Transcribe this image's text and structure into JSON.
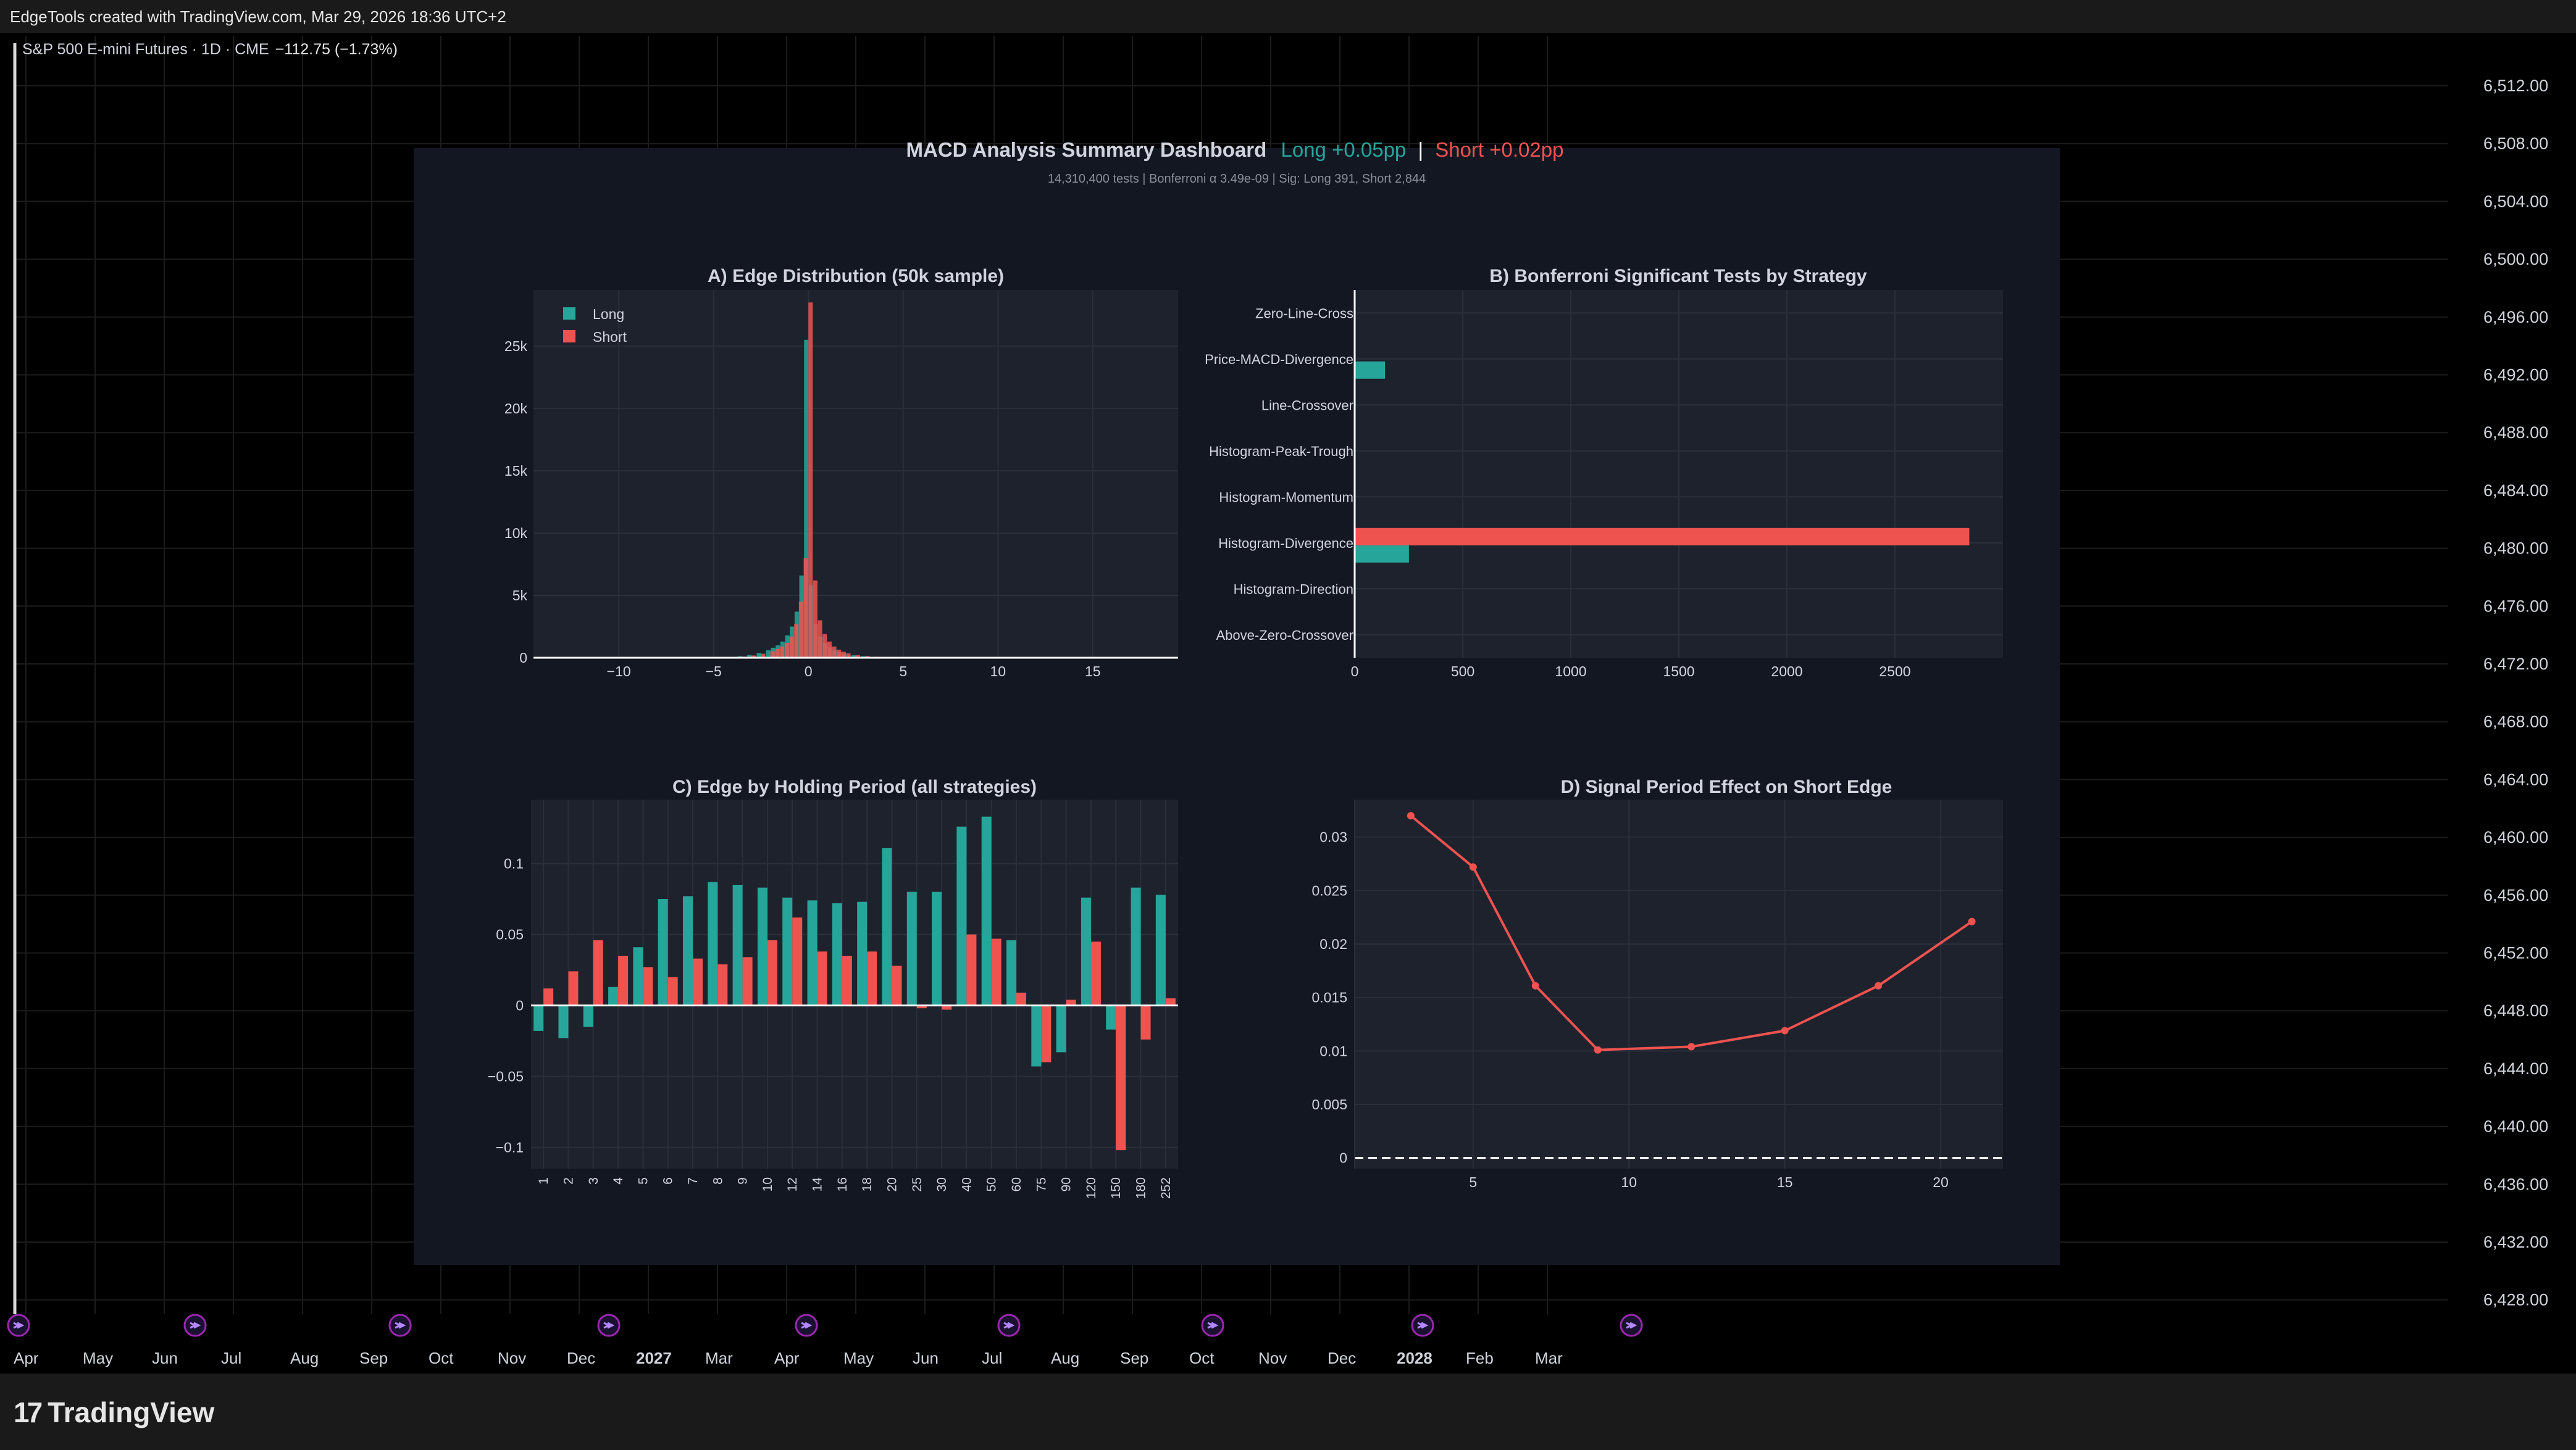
{
  "topbar": {
    "text": "EdgeTools created with TradingView.com, Mar 29, 2026 18:36 UTC+2"
  },
  "legend": {
    "symbol": "S&P 500 E-mini Futures · 1D · CME",
    "change": "−112.75 (−1.73%)"
  },
  "price_axis": [
    "6,512.00",
    "6,508.00",
    "6,504.00",
    "6,500.00",
    "6,496.00",
    "6,492.00",
    "6,488.00",
    "6,484.00",
    "6,480.00",
    "6,476.00",
    "6,472.00",
    "6,468.00",
    "6,464.00",
    "6,460.00",
    "6,456.00",
    "6,452.00",
    "6,448.00",
    "6,444.00",
    "6,440.00",
    "6,436.00",
    "6,432.00",
    "6,428.00"
  ],
  "time_axis": [
    {
      "label": "Apr",
      "bold": false
    },
    {
      "label": "May",
      "bold": false
    },
    {
      "label": "Jun",
      "bold": false
    },
    {
      "label": "Jul",
      "bold": false
    },
    {
      "label": "Aug",
      "bold": false
    },
    {
      "label": "Sep",
      "bold": false
    },
    {
      "label": "Oct",
      "bold": false
    },
    {
      "label": "Nov",
      "bold": false
    },
    {
      "label": "Dec",
      "bold": false
    },
    {
      "label": "2027",
      "bold": true
    },
    {
      "label": "Mar",
      "bold": false
    },
    {
      "label": "Apr",
      "bold": false
    },
    {
      "label": "May",
      "bold": false
    },
    {
      "label": "Jun",
      "bold": false
    },
    {
      "label": "Jul",
      "bold": false
    },
    {
      "label": "Aug",
      "bold": false
    },
    {
      "label": "Sep",
      "bold": false
    },
    {
      "label": "Oct",
      "bold": false
    },
    {
      "label": "Nov",
      "bold": false
    },
    {
      "label": "Dec",
      "bold": false
    },
    {
      "label": "2028",
      "bold": true
    },
    {
      "label": "Feb",
      "bold": false
    },
    {
      "label": "Mar",
      "bold": false
    }
  ],
  "branding": {
    "name": "TradingView"
  },
  "colors": {
    "long": "#26a69a",
    "short": "#ef5350",
    "panel_bg": "#131722",
    "plot_bg": "#1e222d"
  },
  "dashboard": {
    "title": "MACD Analysis Summary Dashboard",
    "title_long": "Long +0.05pp",
    "title_sep": "|",
    "title_short": "Short +0.02pp",
    "subtitle": "14,310,400 tests | Bonferroni α 3.49e-09 | Sig: Long 391, Short 2,844"
  },
  "chart_data": [
    {
      "id": "A",
      "type": "bar",
      "title": "A) Edge Distribution (50k sample)",
      "legend": [
        "Long",
        "Short"
      ],
      "legend_position": "top-left",
      "xlim": [
        -14.5,
        19.5
      ],
      "ylim": [
        0,
        29500
      ],
      "x_ticks": [
        -10,
        -5,
        0,
        5,
        10,
        15
      ],
      "y_ticks": [
        0,
        5000,
        10000,
        15000,
        20000,
        25000
      ],
      "y_tick_labels": [
        "0",
        "5k",
        "10k",
        "15k",
        "20k",
        "25k"
      ],
      "x": [
        -4.5,
        -4.0,
        -3.5,
        -3.0,
        -2.5,
        -2.0,
        -1.75,
        -1.5,
        -1.25,
        -1.0,
        -0.75,
        -0.5,
        -0.25,
        0.0,
        0.25,
        0.5,
        0.75,
        1.0,
        1.25,
        1.5,
        1.75,
        2.0,
        2.5,
        3.0,
        3.5,
        4.0,
        4.5,
        5.0
      ],
      "series": [
        {
          "name": "Long",
          "values": [
            30,
            60,
            120,
            220,
            380,
            600,
            800,
            1000,
            1300,
            1800,
            2500,
            3700,
            6600,
            25500,
            5800,
            2700,
            1700,
            1200,
            850,
            600,
            450,
            330,
            200,
            120,
            70,
            40,
            20,
            10
          ]
        },
        {
          "name": "Short",
          "values": [
            20,
            40,
            90,
            180,
            320,
            520,
            700,
            900,
            1200,
            1700,
            2700,
            4500,
            8000,
            28500,
            6200,
            3000,
            1900,
            1300,
            900,
            650,
            480,
            350,
            210,
            130,
            80,
            50,
            25,
            12
          ]
        }
      ]
    },
    {
      "id": "B",
      "type": "bar",
      "orientation": "horizontal",
      "title": "B) Bonferroni Significant Tests by Strategy",
      "xlim": [
        0,
        3000
      ],
      "x_ticks": [
        0,
        500,
        1000,
        1500,
        2000,
        2500
      ],
      "categories": [
        "Zero-Line-Cross",
        "Price-MACD-Divergence",
        "Line-Crossover",
        "Histogram-Peak-Trough",
        "Histogram-Momentum",
        "Histogram-Divergence",
        "Histogram-Direction",
        "Above-Zero-Crossover"
      ],
      "series": [
        {
          "name": "Long",
          "values": [
            0,
            140,
            0,
            0,
            0,
            251,
            0,
            0
          ]
        },
        {
          "name": "Short",
          "values": [
            0,
            0,
            0,
            0,
            0,
            2844,
            0,
            0
          ]
        }
      ]
    },
    {
      "id": "C",
      "type": "bar",
      "title": "C) Edge by Holding Period (all strategies)",
      "ylim": [
        -0.115,
        0.145
      ],
      "y_ticks": [
        -0.1,
        -0.05,
        0,
        0.05,
        0.1
      ],
      "y_tick_labels": [
        "−0.1",
        "−0.05",
        "0",
        "0.05",
        "0.1"
      ],
      "categories": [
        "1",
        "2",
        "3",
        "4",
        "5",
        "6",
        "7",
        "8",
        "9",
        "10",
        "12",
        "14",
        "16",
        "18",
        "20",
        "25",
        "30",
        "40",
        "50",
        "60",
        "75",
        "90",
        "120",
        "150",
        "180",
        "252"
      ],
      "series": [
        {
          "name": "Long",
          "values": [
            -0.018,
            -0.023,
            -0.015,
            0.013,
            0.041,
            0.075,
            0.077,
            0.087,
            0.085,
            0.083,
            0.076,
            0.074,
            0.072,
            0.073,
            0.111,
            0.08,
            0.08,
            0.126,
            0.133,
            0.046,
            -0.043,
            -0.033,
            0.076,
            -0.017,
            0.083,
            0.078
          ]
        },
        {
          "name": "Short",
          "values": [
            0.012,
            0.024,
            0.046,
            0.035,
            0.027,
            0.02,
            0.033,
            0.029,
            0.034,
            0.046,
            0.062,
            0.038,
            0.035,
            0.038,
            0.028,
            -0.002,
            -0.003,
            0.05,
            0.047,
            0.009,
            -0.04,
            0.004,
            0.045,
            -0.102,
            -0.024,
            0.005
          ]
        }
      ]
    },
    {
      "id": "D",
      "type": "line",
      "title": "D) Signal Period Effect on Short Edge",
      "xlim": [
        1.2,
        22.0
      ],
      "ylim": [
        -0.001,
        0.0335
      ],
      "x_ticks": [
        5,
        10,
        15,
        20
      ],
      "y_ticks": [
        0,
        0.005,
        0.01,
        0.015,
        0.02,
        0.025,
        0.03
      ],
      "y_tick_labels": [
        "0",
        "0.005",
        "0.01",
        "0.015",
        "0.02",
        "0.025",
        "0.03"
      ],
      "series": [
        {
          "x": [
            3,
            5,
            7,
            9,
            12,
            15,
            18,
            21
          ],
          "values": [
            0.032,
            0.0272,
            0.0161,
            0.0101,
            0.0104,
            0.0119,
            0.0161,
            0.0221
          ]
        }
      ],
      "zero_line": "dashed"
    }
  ]
}
